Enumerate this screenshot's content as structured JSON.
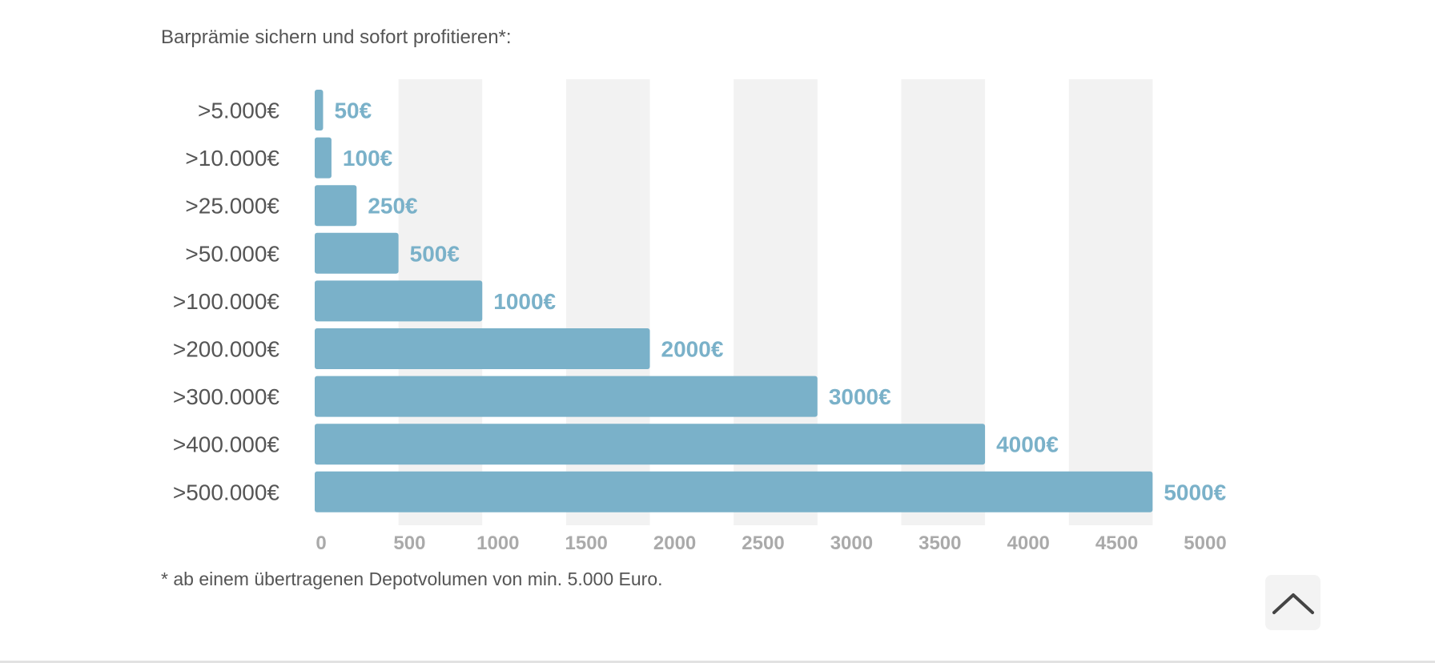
{
  "intro_text": "Barprämie sichern und sofort profitieren*:",
  "footnote": "* ab einem übertragenen Depotvolumen von min. 5.000 Euro.",
  "back_to_top_icon": "chevron-up-icon",
  "colors": {
    "bar": "#7ab1c9",
    "value_label": "#7ab1c9",
    "category_label": "#555555",
    "tick_label": "#aaaaaa",
    "band": "#f2f2f2",
    "text": "#555555"
  },
  "chart_data": {
    "type": "bar",
    "orientation": "horizontal",
    "title": "",
    "xlabel": "",
    "ylabel": "",
    "categories": [
      ">5.000€",
      ">10.000€",
      ">25.000€",
      ">50.000€",
      ">100.000€",
      ">200.000€",
      ">300.000€",
      ">400.000€",
      ">500.000€"
    ],
    "values": [
      50,
      100,
      250,
      500,
      1000,
      2000,
      3000,
      4000,
      5000
    ],
    "value_labels": [
      "50€",
      "100€",
      "250€",
      "500€",
      "1000€",
      "2000€",
      "3000€",
      "4000€",
      "5000€"
    ],
    "x_ticks": [
      "0",
      "500",
      "1000",
      "1500",
      "2000",
      "2500",
      "3000",
      "3500",
      "4000",
      "4500",
      "5000"
    ],
    "xlim": [
      0,
      5500
    ],
    "grid": "alternating vertical bands",
    "legend": "none"
  }
}
